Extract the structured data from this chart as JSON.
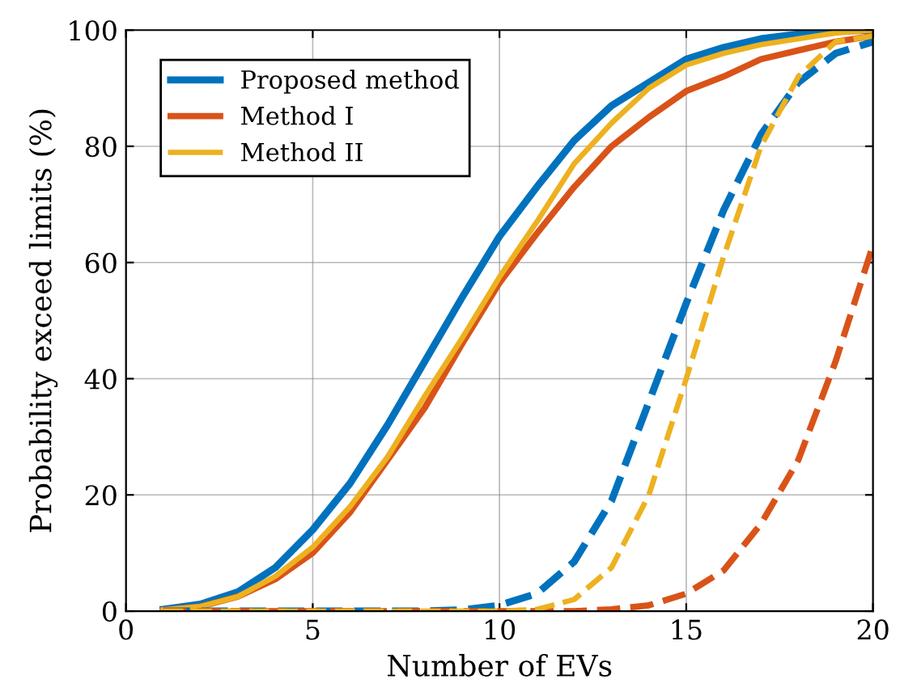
{
  "chart_data": {
    "type": "line",
    "xlabel": "Number of EVs",
    "ylabel": "Probability exceed limits (%)",
    "x": [
      1,
      2,
      3,
      4,
      5,
      6,
      7,
      8,
      9,
      10,
      11,
      12,
      13,
      14,
      15,
      16,
      17,
      18,
      19,
      20
    ],
    "series": [
      {
        "name": "Proposed method",
        "color": "#0072bd",
        "line_style": "solid",
        "values": [
          0.3,
          1.2,
          3.3,
          7.5,
          14,
          22,
          32,
          43,
          54,
          64.5,
          73,
          81,
          87,
          91,
          95,
          97,
          98.5,
          99.3,
          99.8,
          100
        ]
      },
      {
        "name": "Method I",
        "color": "#d95319",
        "line_style": "solid",
        "values": [
          0.2,
          0.8,
          2.5,
          5.5,
          10,
          17,
          26,
          35,
          46,
          56.5,
          65,
          73,
          80,
          85,
          89.5,
          92,
          95,
          96.5,
          98,
          99
        ]
      },
      {
        "name": "Method II",
        "color": "#edb120",
        "line_style": "solid",
        "values": [
          0.2,
          0.8,
          2.5,
          6,
          11,
          18,
          26.5,
          37,
          47,
          57.5,
          67,
          77,
          84,
          90,
          94,
          96,
          97.5,
          98.5,
          99.5,
          100
        ]
      },
      {
        "color": "#0072bd",
        "line_style": "dashed",
        "values": [
          0,
          0,
          0,
          0,
          0,
          0,
          0,
          0,
          0.2,
          1,
          3,
          8.5,
          19,
          36,
          53,
          69,
          82,
          91,
          96,
          98
        ]
      },
      {
        "color": "#d95319",
        "line_style": "dashed",
        "values": [
          0,
          0,
          0,
          0,
          0,
          0,
          0,
          0,
          0,
          0,
          0,
          0,
          0.3,
          1,
          3,
          7,
          15,
          26,
          43,
          63
        ]
      },
      {
        "color": "#edb120",
        "line_style": "dashed",
        "values": [
          0,
          0,
          0,
          0,
          0,
          0,
          0,
          0,
          0,
          0,
          0.3,
          2,
          7.5,
          20,
          40,
          61,
          80,
          92,
          98,
          99
        ]
      }
    ],
    "xlim": [
      0,
      20
    ],
    "ylim": [
      0,
      100
    ],
    "xticks": [
      0,
      5,
      10,
      15,
      20
    ],
    "yticks": [
      0,
      20,
      40,
      60,
      80,
      100
    ],
    "grid": true,
    "legend": "top left",
    "marker": "none"
  }
}
